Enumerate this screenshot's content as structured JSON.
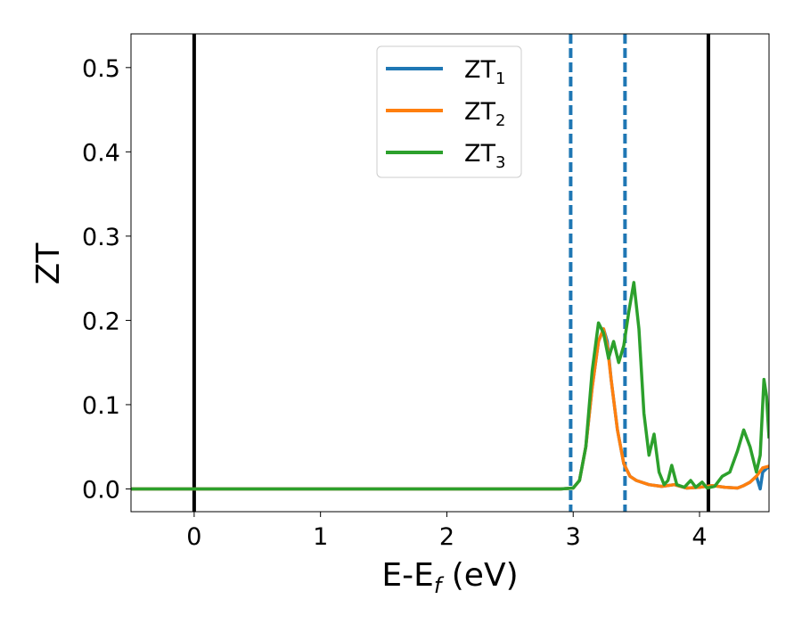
{
  "chart_data": {
    "type": "line",
    "xlabel": {
      "main": "E-E",
      "sub": "f",
      "unit": " (eV)"
    },
    "ylabel": "ZT",
    "xlim": [
      -0.5,
      4.55
    ],
    "ylim": [
      -0.027,
      0.54
    ],
    "x_ticks": [
      0,
      1,
      2,
      3,
      4
    ],
    "x_tick_labels": [
      "0",
      "1",
      "2",
      "3",
      "4"
    ],
    "y_ticks": [
      0.0,
      0.1,
      0.2,
      0.3,
      0.4,
      0.5
    ],
    "y_tick_labels": [
      "0.0",
      "0.1",
      "0.2",
      "0.3",
      "0.4",
      "0.5"
    ],
    "grid": false,
    "legend": {
      "placement": "top-center",
      "entries": [
        {
          "main": "ZT",
          "sub": "1",
          "color": "#1f77b4"
        },
        {
          "main": "ZT",
          "sub": "2",
          "color": "#ff7f0e"
        },
        {
          "main": "ZT",
          "sub": "3",
          "color": "#2ca02c"
        }
      ]
    },
    "vertical_lines": [
      {
        "x": 0.0,
        "style": "solid",
        "color": "#000000"
      },
      {
        "x": 2.98,
        "style": "dashed",
        "color": "#1f77b4"
      },
      {
        "x": 3.41,
        "style": "dashed",
        "color": "#1f77b4"
      },
      {
        "x": 4.07,
        "style": "solid",
        "color": "#000000"
      }
    ],
    "series": [
      {
        "name": "ZT1",
        "color": "#1f77b4",
        "points": [
          [
            -0.5,
            0
          ],
          [
            2.9,
            0
          ],
          [
            3.0,
            0.001
          ],
          [
            3.05,
            0.01
          ],
          [
            3.1,
            0.05
          ],
          [
            3.15,
            0.12
          ],
          [
            3.2,
            0.175
          ],
          [
            3.24,
            0.19
          ],
          [
            3.27,
            0.175
          ],
          [
            3.3,
            0.13
          ],
          [
            3.35,
            0.07
          ],
          [
            3.4,
            0.03
          ],
          [
            3.45,
            0.015
          ],
          [
            3.5,
            0.01
          ],
          [
            3.6,
            0.005
          ],
          [
            3.7,
            0.003
          ],
          [
            3.8,
            0.005
          ],
          [
            3.9,
            0.001
          ],
          [
            4.0,
            0.002
          ],
          [
            4.1,
            0.004
          ],
          [
            4.2,
            0.002
          ],
          [
            4.3,
            0.001
          ],
          [
            4.35,
            0.004
          ],
          [
            4.4,
            0.008
          ],
          [
            4.45,
            0.015
          ],
          [
            4.48,
            0.0
          ],
          [
            4.5,
            0.02
          ],
          [
            4.55,
            0.027
          ]
        ]
      },
      {
        "name": "ZT2",
        "color": "#ff7f0e",
        "points": [
          [
            -0.5,
            0
          ],
          [
            2.9,
            0
          ],
          [
            3.0,
            0.001
          ],
          [
            3.05,
            0.01
          ],
          [
            3.1,
            0.05
          ],
          [
            3.15,
            0.12
          ],
          [
            3.2,
            0.175
          ],
          [
            3.24,
            0.19
          ],
          [
            3.27,
            0.17
          ],
          [
            3.3,
            0.13
          ],
          [
            3.35,
            0.07
          ],
          [
            3.4,
            0.03
          ],
          [
            3.45,
            0.015
          ],
          [
            3.5,
            0.01
          ],
          [
            3.6,
            0.005
          ],
          [
            3.7,
            0.003
          ],
          [
            3.8,
            0.005
          ],
          [
            3.9,
            0.001
          ],
          [
            4.0,
            0.002
          ],
          [
            4.1,
            0.004
          ],
          [
            4.2,
            0.002
          ],
          [
            4.3,
            0.001
          ],
          [
            4.35,
            0.004
          ],
          [
            4.4,
            0.008
          ],
          [
            4.45,
            0.015
          ],
          [
            4.5,
            0.025
          ],
          [
            4.55,
            0.027
          ]
        ]
      },
      {
        "name": "ZT3",
        "color": "#2ca02c",
        "points": [
          [
            -0.5,
            0
          ],
          [
            2.9,
            0
          ],
          [
            3.0,
            0.001
          ],
          [
            3.05,
            0.01
          ],
          [
            3.1,
            0.05
          ],
          [
            3.15,
            0.14
          ],
          [
            3.2,
            0.197
          ],
          [
            3.24,
            0.185
          ],
          [
            3.28,
            0.155
          ],
          [
            3.32,
            0.175
          ],
          [
            3.36,
            0.15
          ],
          [
            3.4,
            0.17
          ],
          [
            3.44,
            0.21
          ],
          [
            3.48,
            0.245
          ],
          [
            3.52,
            0.19
          ],
          [
            3.56,
            0.09
          ],
          [
            3.6,
            0.04
          ],
          [
            3.64,
            0.065
          ],
          [
            3.68,
            0.02
          ],
          [
            3.72,
            0.005
          ],
          [
            3.75,
            0.01
          ],
          [
            3.78,
            0.028
          ],
          [
            3.82,
            0.005
          ],
          [
            3.88,
            0.002
          ],
          [
            3.93,
            0.01
          ],
          [
            3.97,
            0.002
          ],
          [
            4.02,
            0.008
          ],
          [
            4.06,
            0.001
          ],
          [
            4.12,
            0.003
          ],
          [
            4.18,
            0.015
          ],
          [
            4.24,
            0.02
          ],
          [
            4.3,
            0.045
          ],
          [
            4.35,
            0.07
          ],
          [
            4.4,
            0.05
          ],
          [
            4.45,
            0.02
          ],
          [
            4.48,
            0.04
          ],
          [
            4.51,
            0.13
          ],
          [
            4.53,
            0.11
          ],
          [
            4.55,
            0.06
          ]
        ]
      }
    ]
  }
}
